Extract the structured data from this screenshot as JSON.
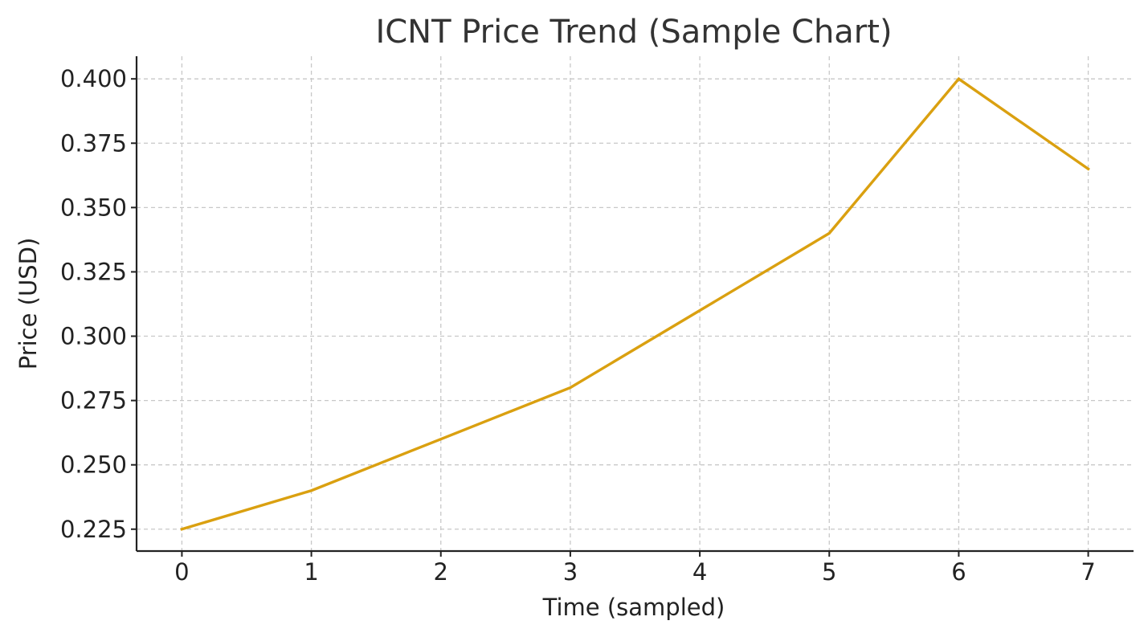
{
  "chart_data": {
    "type": "line",
    "title": "ICNT Price Trend (Sample Chart)",
    "xlabel": "Time (sampled)",
    "ylabel": "Price (USD)",
    "x": [
      0,
      1,
      2,
      3,
      4,
      5,
      6,
      7
    ],
    "xticks": [
      "0",
      "1",
      "2",
      "3",
      "4",
      "5",
      "6",
      "7"
    ],
    "yticks": [
      "0.225",
      "0.250",
      "0.275",
      "0.300",
      "0.325",
      "0.350",
      "0.375",
      "0.400"
    ],
    "ytick_values": [
      0.225,
      0.25,
      0.275,
      0.3,
      0.325,
      0.35,
      0.375,
      0.4
    ],
    "xlim": [
      -0.35,
      7.35
    ],
    "ylim": [
      0.2165,
      0.4088
    ],
    "grid": true,
    "series": [
      {
        "values": [
          0.225,
          0.24,
          0.26,
          0.28,
          0.31,
          0.34,
          0.4,
          0.365
        ],
        "color": "#DAA010"
      }
    ]
  }
}
